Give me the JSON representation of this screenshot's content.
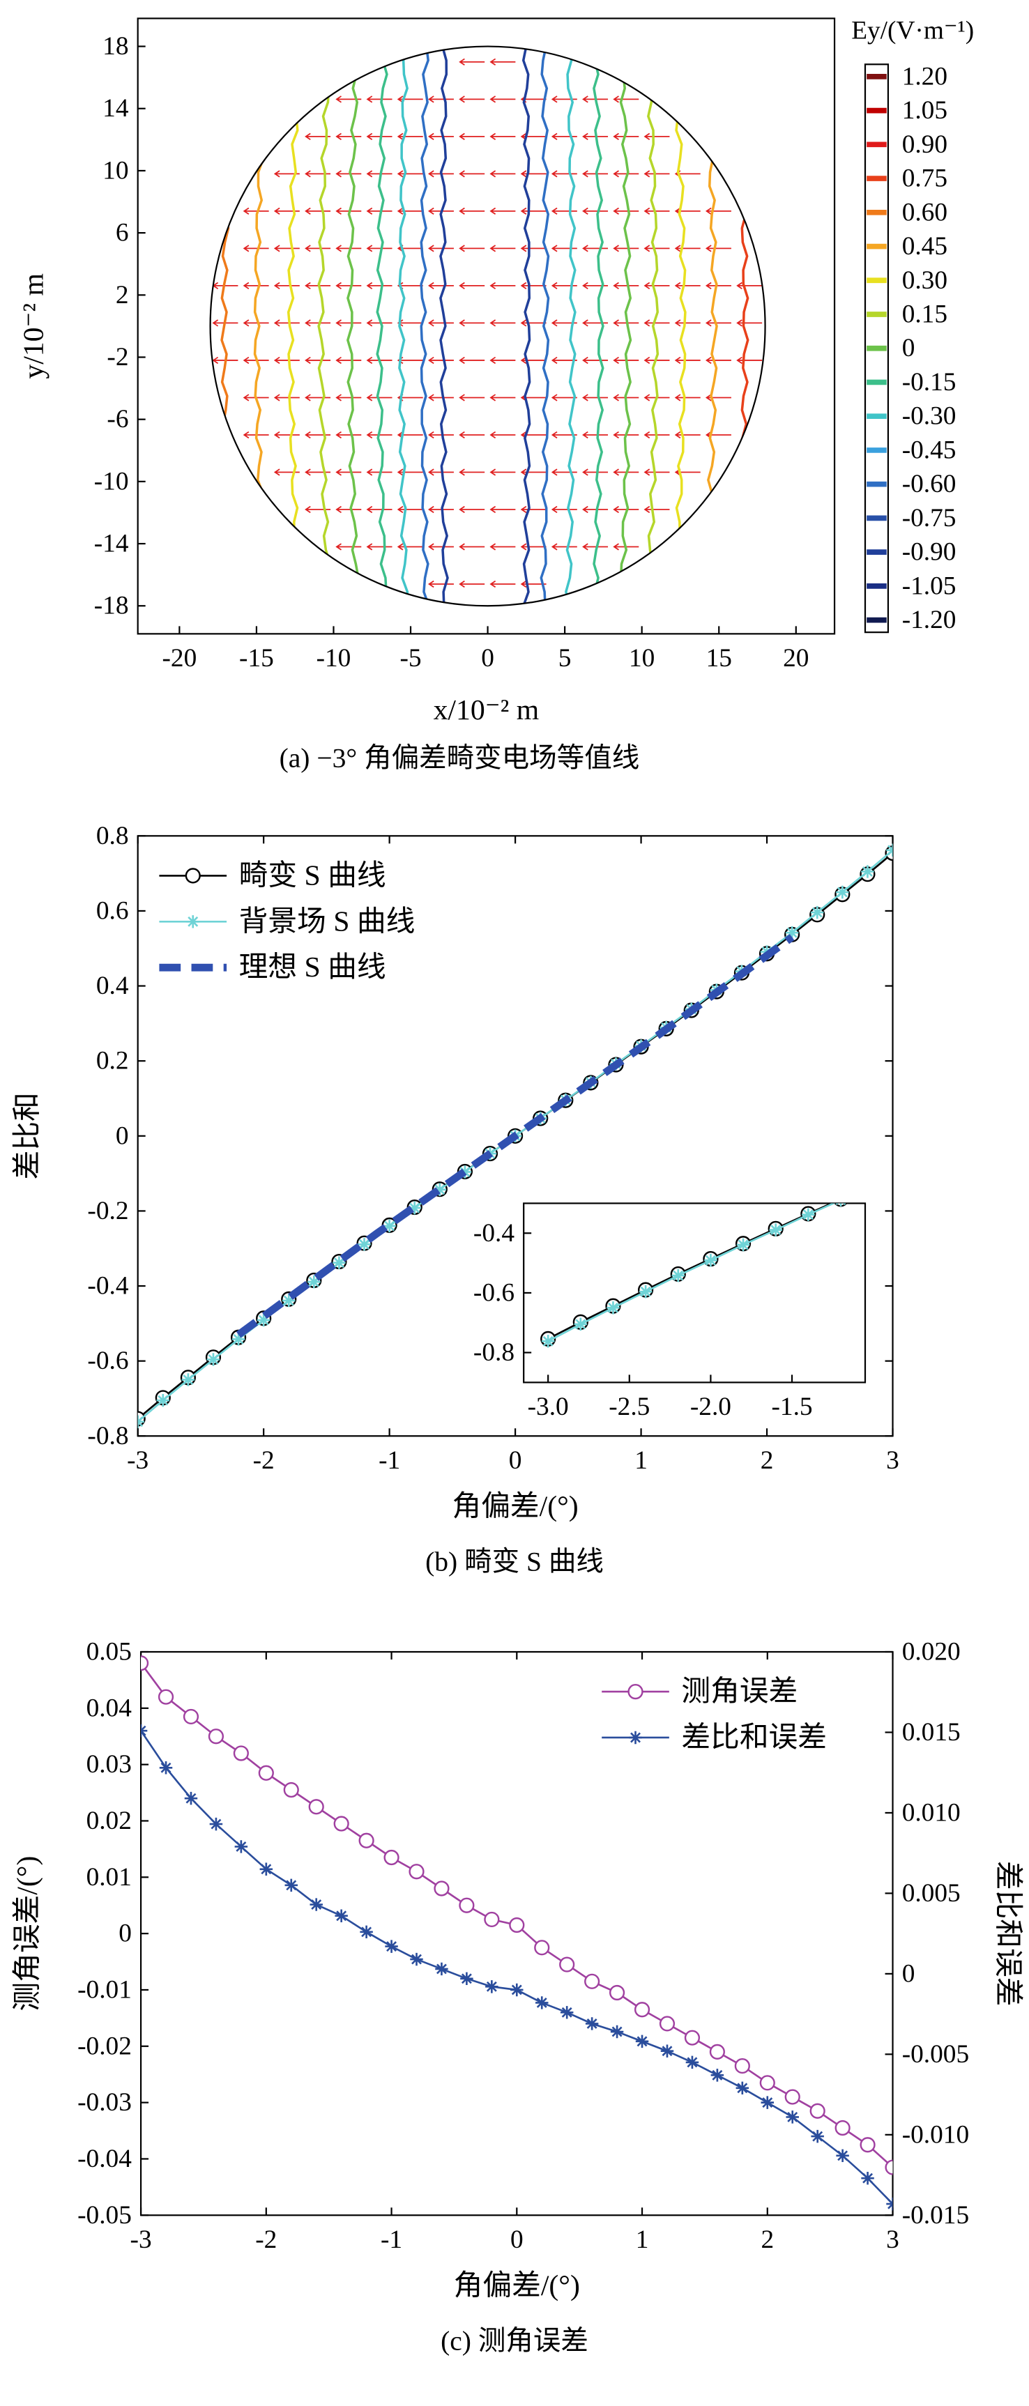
{
  "chart_data": [
    {
      "type": "contour",
      "caption": "(a) −3° 角偏差畸变电场等值线",
      "xlabel": "x/10⁻² m",
      "ylabel": "y/10⁻² m",
      "xlim": [
        -22.7,
        22.5
      ],
      "ylim": [
        -19.8,
        19.8
      ],
      "xticks": [
        -20,
        -15,
        -10,
        -5,
        0,
        5,
        10,
        15,
        20
      ],
      "yticks": [
        -18,
        -14,
        -10,
        -6,
        -2,
        2,
        6,
        10,
        14,
        18
      ],
      "circle_radius": 18,
      "colorbar": {
        "title": "Ey/(V·m⁻¹)",
        "levels": [
          {
            "value": 1.2,
            "label": "1.20"
          },
          1.05,
          {
            "value": 0.9,
            "label": "0.90"
          },
          0.75,
          {
            "value": 0.6,
            "label": "0.60"
          },
          0.45,
          {
            "value": 0.3,
            "label": "0.30"
          },
          0.15,
          0,
          -0.15,
          {
            "value": -0.3,
            "label": "-0.30"
          },
          -0.45,
          {
            "value": -0.6,
            "label": "-0.60"
          },
          -0.75,
          {
            "value": -0.9,
            "label": "-0.90"
          },
          -1.05,
          {
            "value": -1.2,
            "label": "-1.20"
          }
        ],
        "colors": [
          "#7f1010",
          "#c00000",
          "#e01b1b",
          "#e8401a",
          "#ef7a1a",
          "#f5a623",
          "#e8e020",
          "#b5d62a",
          "#6cc24a",
          "#3cbf8a",
          "#40c4c8",
          "#3aa0de",
          "#2f6fc4",
          "#2850a8",
          "#203f9a",
          "#1a2f85",
          "#101a50"
        ]
      },
      "contours": {
        "levels": [
          0.6,
          0.45,
          0.3,
          0.15,
          0,
          -0.15,
          -0.3,
          -0.6,
          -0.9,
          -0.9,
          -0.6,
          -0.3,
          -0.15,
          0,
          0.15,
          0.3,
          0.45,
          0.75
        ],
        "x": [
          -17.1,
          -15.0,
          -12.8,
          -10.8,
          -8.9,
          -7.0,
          -5.6,
          -4.2,
          -2.9,
          2.6,
          3.8,
          5.5,
          7.3,
          9.1,
          10.9,
          12.7,
          14.7,
          16.7
        ]
      }
    },
    {
      "type": "line",
      "caption": "(b) 畸变 S 曲线",
      "xlabel": "角偏差/(°)",
      "ylabel": "差比和",
      "xlim": [
        -3,
        3
      ],
      "ylim": [
        -0.8,
        0.8
      ],
      "xticks": [
        -3,
        -2,
        -1,
        0,
        1,
        2,
        3
      ],
      "yticks": [
        -0.8,
        -0.6,
        -0.4,
        -0.2,
        0,
        0.2,
        0.4,
        0.6,
        0.8
      ],
      "legend": "upper left",
      "series": [
        {
          "name": "畸变 S 曲线",
          "color": "#000000",
          "marker": "o",
          "x": [
            -3,
            -2.8,
            -2.6,
            -2.4,
            -2.2,
            -2,
            -1.8,
            -1.6,
            -1.4,
            -1.2,
            -1,
            -0.8,
            -0.6,
            -0.4,
            -0.2,
            0,
            0.2,
            0.4,
            0.6,
            0.8,
            1,
            1.2,
            1.4,
            1.6,
            1.8,
            2,
            2.2,
            2.4,
            2.6,
            2.8,
            3
          ],
          "values": [
            -0.754,
            -0.698,
            -0.644,
            -0.59,
            -0.537,
            -0.486,
            -0.435,
            -0.385,
            -0.335,
            -0.286,
            -0.238,
            -0.19,
            -0.142,
            -0.095,
            -0.047,
            0,
            0.047,
            0.095,
            0.142,
            0.19,
            0.238,
            0.286,
            0.335,
            0.385,
            0.435,
            0.486,
            0.537,
            0.59,
            0.644,
            0.698,
            0.754
          ]
        },
        {
          "name": "背景场 S 曲线",
          "color": "#6fd3d6",
          "marker": "*",
          "x": [
            -3,
            -2.8,
            -2.6,
            -2.4,
            -2.2,
            -2,
            -1.8,
            -1.6,
            -1.4,
            -1.2,
            -1,
            -0.8,
            -0.6,
            -0.4,
            -0.2,
            0,
            0.2,
            0.4,
            0.6,
            0.8,
            1,
            1.2,
            1.4,
            1.6,
            1.8,
            2,
            2.2,
            2.4,
            2.6,
            2.8,
            3
          ],
          "values": [
            -0.762,
            -0.705,
            -0.65,
            -0.596,
            -0.542,
            -0.491,
            -0.439,
            -0.389,
            -0.338,
            -0.289,
            -0.24,
            -0.192,
            -0.143,
            -0.096,
            -0.047,
            0,
            0.047,
            0.096,
            0.143,
            0.192,
            0.24,
            0.289,
            0.338,
            0.389,
            0.439,
            0.491,
            0.542,
            0.596,
            0.65,
            0.705,
            0.762
          ]
        },
        {
          "name": "理想 S 曲线",
          "color": "#3050b0",
          "linestyle": "dashed",
          "x": [
            -2.2,
            -1.1,
            0,
            1.1,
            2.2
          ],
          "values": [
            -0.53,
            -0.26,
            0,
            0.26,
            0.53
          ]
        }
      ],
      "inset": {
        "xlim": [
          -3.15,
          -1.05
        ],
        "ylim": [
          -0.9,
          -0.3
        ],
        "xticks": [
          {
            "value": -3,
            "label": "-3.0"
          },
          -2.5,
          {
            "value": -2,
            "label": "-2.0"
          },
          -1.5
        ],
        "yticks": [
          -0.8,
          -0.6,
          -0.4
        ]
      }
    },
    {
      "type": "line",
      "caption": "(c) 测角误差",
      "xlabel": "角偏差/(°)",
      "ylabel": "测角误差/(°)",
      "y2label": "差比和误差",
      "xlim": [
        -3,
        3
      ],
      "ylim": [
        -0.05,
        0.05
      ],
      "y2lim": [
        -0.015,
        0.02
      ],
      "xticks": [
        -3,
        -2,
        -1,
        0,
        1,
        2,
        3
      ],
      "yticks": [
        -0.05,
        -0.04,
        -0.03,
        -0.02,
        -0.01,
        0,
        0.01,
        0.02,
        0.03,
        0.04,
        0.05
      ],
      "y2ticks": [
        -0.015,
        {
          "value": -0.01,
          "label": "-0.010"
        },
        -0.005,
        0,
        0.005,
        {
          "value": 0.01,
          "label": "0.010"
        },
        0.015,
        {
          "value": 0.02,
          "label": "0.020"
        }
      ],
      "legend": "upper right",
      "x": [
        -3,
        -2.8,
        -2.6,
        -2.4,
        -2.2,
        -2,
        -1.8,
        -1.6,
        -1.4,
        -1.2,
        -1,
        -0.8,
        -0.6,
        -0.4,
        -0.2,
        0,
        0.2,
        0.4,
        0.6,
        0.8,
        1,
        1.2,
        1.4,
        1.6,
        1.8,
        2,
        2.2,
        2.4,
        2.6,
        2.8,
        3
      ],
      "series": [
        {
          "name": "测角误差",
          "color": "#a040a0",
          "marker": "o",
          "values": [
            0.048,
            0.042,
            0.0385,
            0.035,
            0.032,
            0.0285,
            0.0255,
            0.0225,
            0.0195,
            0.0165,
            0.0135,
            0.011,
            0.008,
            0.005,
            0.0025,
            0.0015,
            -0.0025,
            -0.0055,
            -0.0085,
            -0.0105,
            -0.0135,
            -0.016,
            -0.0185,
            -0.021,
            -0.0235,
            -0.0265,
            -0.029,
            -0.0315,
            -0.0345,
            -0.0375,
            -0.0415
          ]
        },
        {
          "name": "差比和误差",
          "color": "#2a4d9c",
          "marker": "*",
          "axis": "y2",
          "values": [
            0.0151,
            0.0128,
            0.0109,
            0.0093,
            0.0079,
            0.0065,
            0.0055,
            0.0043,
            0.0036,
            0.0026,
            0.0017,
            0.0009,
            0.0003,
            -0.0003,
            -0.0008,
            -0.001,
            -0.0018,
            -0.0024,
            -0.0031,
            -0.0036,
            -0.0042,
            -0.0048,
            -0.0055,
            -0.0063,
            -0.0071,
            -0.008,
            -0.0089,
            -0.0101,
            -0.0113,
            -0.0127,
            -0.0143
          ]
        }
      ]
    }
  ]
}
